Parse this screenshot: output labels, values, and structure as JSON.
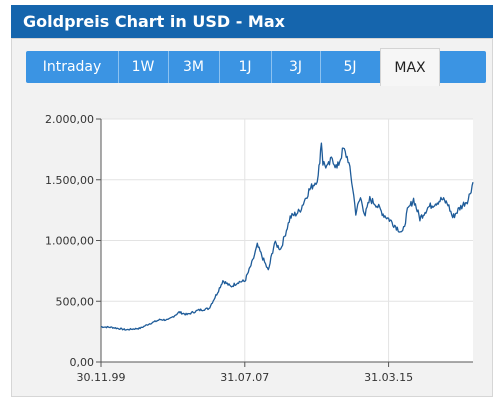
{
  "header": {
    "title": "Goldpreis Chart in USD - Max"
  },
  "tabs": [
    {
      "label": "Intraday"
    },
    {
      "label": "1W"
    },
    {
      "label": "3M"
    },
    {
      "label": "1J"
    },
    {
      "label": "3J"
    },
    {
      "label": "5J"
    },
    {
      "label": "MAX"
    }
  ],
  "active_tab": "MAX",
  "colors": {
    "header": "#1565ad",
    "tabbar": "#3b94e3",
    "line": "#1f5c99"
  },
  "chart_data": {
    "type": "line",
    "title": "",
    "xlabel": "",
    "ylabel": "",
    "ylim": [
      0,
      2000
    ],
    "yticks": [
      0,
      500,
      1000,
      1500,
      2000
    ],
    "ytick_labels": [
      "0,00",
      "500,00",
      "1.000,00",
      "1.500,00",
      "2.000,00"
    ],
    "xticks": [
      "1999-11-30",
      "2007-07-31",
      "2015-03-31"
    ],
    "xtick_labels": [
      "30.11.99",
      "31.07.07",
      "31.03.15"
    ],
    "xlim": [
      "1999-11-30",
      "2019-09-30"
    ],
    "grid": true,
    "series": [
      {
        "name": "",
        "x": [
          "1999-11-30",
          "2000-06-30",
          "2001-03-31",
          "2001-12-31",
          "2002-06-30",
          "2003-01-31",
          "2003-06-30",
          "2004-01-31",
          "2004-06-30",
          "2005-01-31",
          "2005-08-31",
          "2006-01-31",
          "2006-05-31",
          "2006-10-31",
          "2007-03-31",
          "2007-07-31",
          "2007-12-31",
          "2008-03-31",
          "2008-10-31",
          "2009-02-28",
          "2009-06-30",
          "2009-12-31",
          "2010-06-30",
          "2010-12-31",
          "2011-04-30",
          "2011-06-30",
          "2011-08-31",
          "2011-09-30",
          "2011-12-31",
          "2012-03-31",
          "2012-06-30",
          "2012-10-31",
          "2013-01-31",
          "2013-04-30",
          "2013-06-30",
          "2013-09-30",
          "2013-12-31",
          "2014-03-31",
          "2014-07-31",
          "2014-12-31",
          "2015-03-31",
          "2015-08-31",
          "2015-12-31",
          "2016-03-31",
          "2016-07-31",
          "2016-11-30",
          "2017-04-30",
          "2017-09-30",
          "2018-01-31",
          "2018-05-31",
          "2018-08-31",
          "2018-12-31",
          "2019-03-31",
          "2019-06-30",
          "2019-09-30"
        ],
        "values": [
          290,
          285,
          265,
          278,
          315,
          350,
          345,
          410,
          390,
          425,
          440,
          560,
          670,
          620,
          660,
          665,
          830,
          960,
          750,
          980,
          930,
          1190,
          1240,
          1410,
          1480,
          1520,
          1820,
          1640,
          1600,
          1680,
          1590,
          1750,
          1670,
          1440,
          1230,
          1350,
          1210,
          1340,
          1300,
          1210,
          1180,
          1110,
          1060,
          1240,
          1340,
          1180,
          1270,
          1310,
          1340,
          1300,
          1190,
          1260,
          1300,
          1340,
          1480
        ]
      }
    ]
  }
}
